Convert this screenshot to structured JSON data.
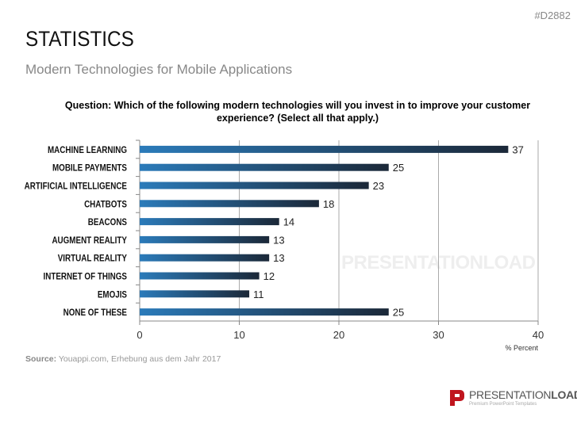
{
  "header": {
    "code": "#D2882",
    "title": "STATISTICS",
    "subtitle": "Modern Technologies for Mobile Applications"
  },
  "watermark": "PRESENTATIONLOAD",
  "chart_data": {
    "type": "bar",
    "orientation": "horizontal",
    "title": "Question: Which of the following modern technologies will you invest in to improve your customer experience? (Select all that apply.)",
    "categories": [
      "MACHINE LEARNING",
      "MOBILE PAYMENTS",
      "ARTIFICIAL INTELLIGENCE",
      "CHATBOTS",
      "BEACONS",
      "AUGMENT REALITY",
      "VIRTUAL REALITY",
      "INTERNET OF THINGS",
      "EMOJIS",
      "NONE OF THESE"
    ],
    "values": [
      37,
      25,
      23,
      18,
      14,
      13,
      13,
      12,
      11,
      25
    ],
    "xlim": [
      0,
      40
    ],
    "xticks": [
      0,
      10,
      20,
      30,
      40
    ],
    "xlabel": "% Percent",
    "grid": "vertical",
    "data_labels": true,
    "colors": {
      "bar_start": "#2b7bba",
      "bar_end": "#1b2838"
    }
  },
  "source": {
    "label": "Source:",
    "text": " Youappi.com, Erhebung aus dem Jahr 2017"
  },
  "logo": {
    "name_light": "PRESENTATION",
    "name_bold": "LOAD",
    "tagline": "Premium PowerPoint Templates"
  }
}
